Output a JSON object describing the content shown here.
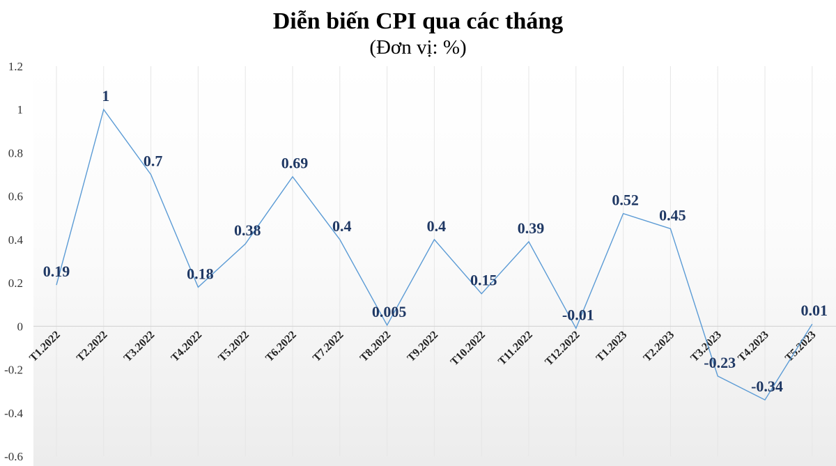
{
  "chart_data": {
    "type": "line",
    "title": "Diễn biến CPI qua các tháng",
    "subtitle": "(Đơn vị: %)",
    "categories": [
      "T1.2022",
      "T2.2022",
      "T3.2022",
      "T4.2022",
      "T5.2022",
      "T6.2022",
      "T7.2022",
      "T8.2022",
      "T9.2022",
      "T10.2022",
      "T11.2022",
      "T12.2022",
      "T1.2023",
      "T2.2023",
      "T3.2023",
      "T4.2023",
      "T5.2023"
    ],
    "values": [
      0.19,
      1,
      0.7,
      0.18,
      0.38,
      0.69,
      0.4,
      0.005,
      0.4,
      0.15,
      0.39,
      -0.01,
      0.52,
      0.45,
      -0.23,
      -0.34,
      0.01
    ],
    "value_labels": [
      "0.19",
      "1",
      "0.7",
      "0.18",
      "0.38",
      "0.69",
      "0.4",
      "0.005",
      "0.4",
      "0.15",
      "0.39",
      "-0.01",
      "0.52",
      "0.45",
      "-0.23",
      "-0.34",
      "0.01"
    ],
    "ylim": [
      -0.6,
      1.2
    ],
    "yticks": [
      "-0.6",
      "-0.4",
      "-0.2",
      "0",
      "0.2",
      "0.4",
      "0.6",
      "0.8",
      "1",
      "1.2"
    ],
    "grid": "vertical",
    "legend": "none",
    "colors": {
      "line": "#5b9bd5",
      "label": "#1f3864",
      "grid": "#e6e6e6"
    }
  }
}
